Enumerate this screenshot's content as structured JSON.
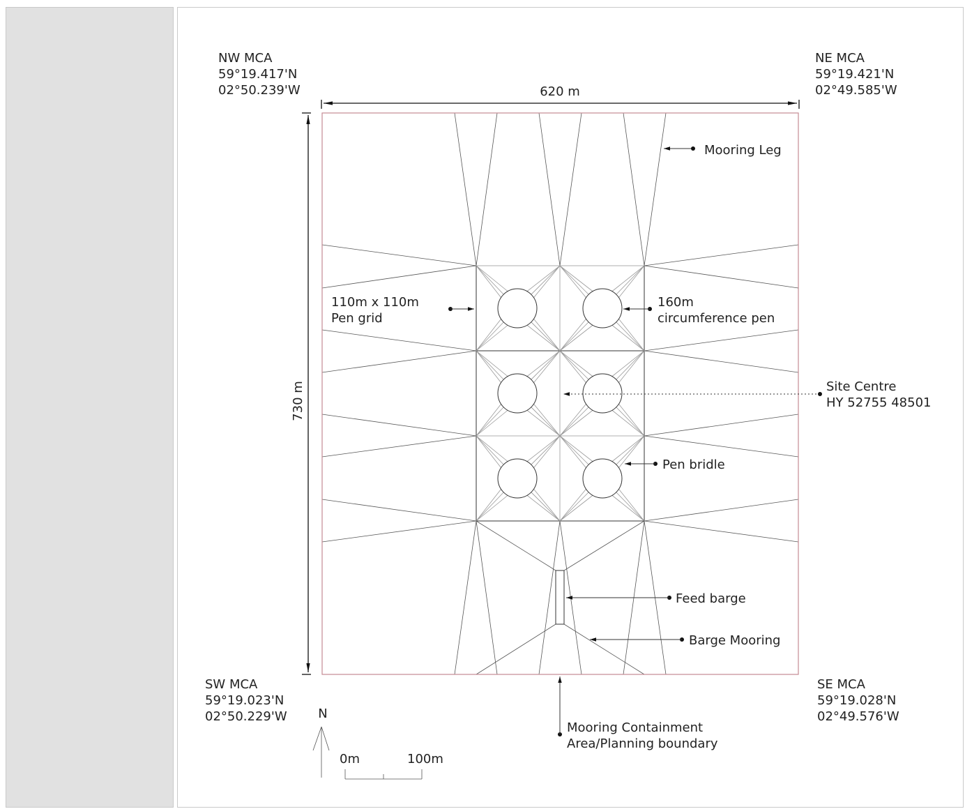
{
  "labels": {
    "nw": [
      "NW MCA",
      "59°19.417'N",
      "02°50.239'W"
    ],
    "ne": [
      "NE MCA",
      "59°19.421'N",
      "02°49.585'W"
    ],
    "sw": [
      "SW MCA",
      "59°19.023'N",
      "02°50.229'W"
    ],
    "se": [
      "SE MCA",
      "59°19.028'N",
      "02°49.576'W"
    ],
    "width_dim": "620 m",
    "height_dim": "730 m",
    "mooring_leg": "Mooring Leg",
    "pen_grid": [
      "110m x 110m",
      "Pen grid"
    ],
    "pen": [
      "160m",
      "circumference pen"
    ],
    "site_centre": [
      "Site Centre",
      "HY 52755 48501"
    ],
    "pen_bridle": "Pen bridle",
    "feed_barge": "Feed barge",
    "barge_mooring": "Barge Mooring",
    "mca_boundary": [
      "Mooring Containment",
      "Area/Planning boundary"
    ],
    "north": "N",
    "scale_start": "0m",
    "scale_end": "100m"
  },
  "colors": {
    "boundary": "#c48a93",
    "cell_background": "#e1e1e1"
  }
}
